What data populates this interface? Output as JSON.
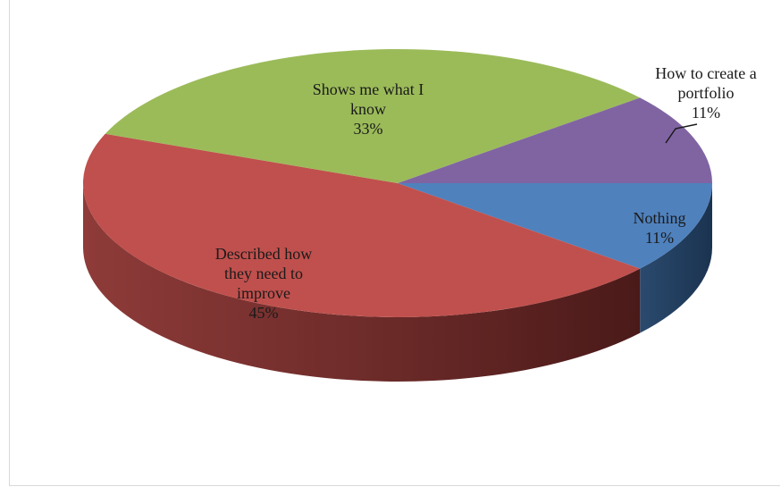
{
  "chart_data": {
    "type": "pie",
    "title": "",
    "slices": [
      {
        "label_lines": [
          "Nothing",
          "11%"
        ],
        "label": "Nothing",
        "value": 11,
        "color": "#4F81BD"
      },
      {
        "label_lines": [
          "Described how",
          "they need to",
          "improve",
          "45%"
        ],
        "label": "Described how they need to improve",
        "value": 45,
        "color": "#C0504D"
      },
      {
        "label_lines": [
          "Shows me what I",
          "know",
          "33%"
        ],
        "label": "Shows me what I know",
        "value": 33,
        "color": "#9BBB59"
      },
      {
        "label_lines": [
          "How to create a",
          "portfolio",
          "11%"
        ],
        "label": "How to create a portfolio",
        "value": 11,
        "color": "#8064A2"
      }
    ],
    "style": "3d",
    "legend": "none"
  }
}
